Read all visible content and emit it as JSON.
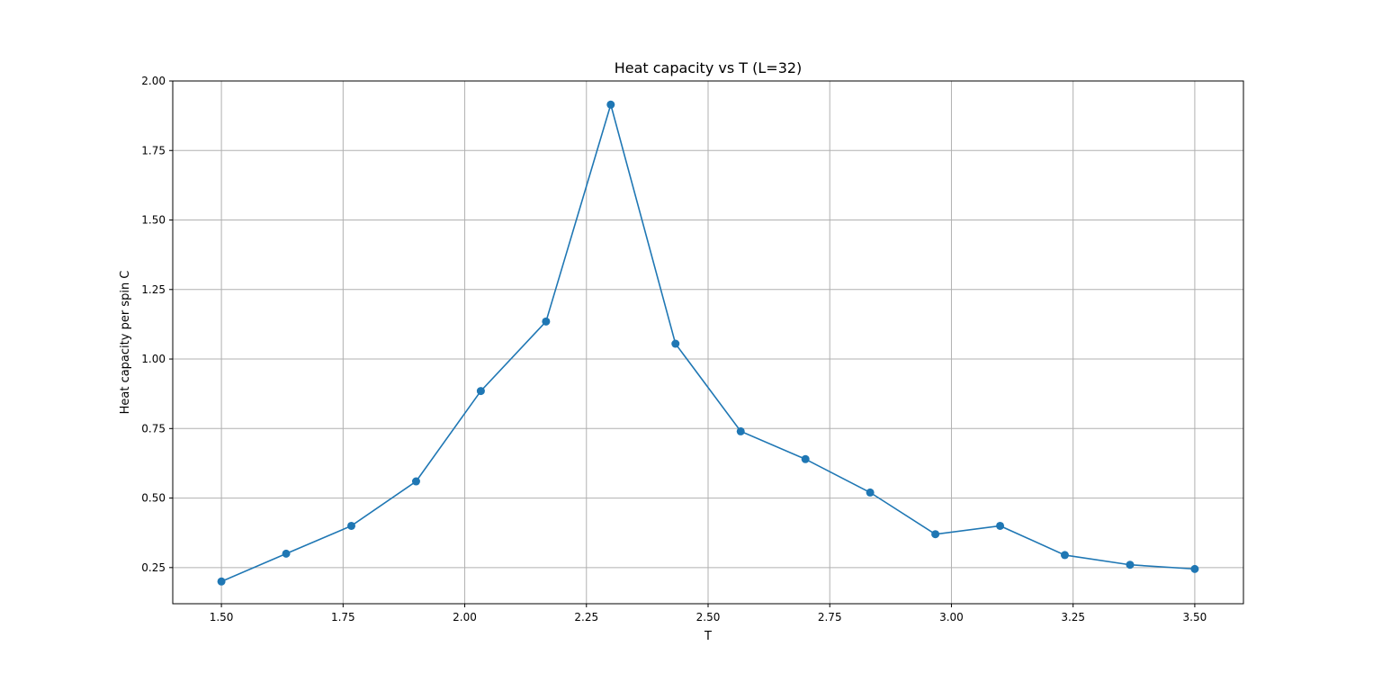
{
  "chart_data": {
    "type": "line",
    "title": "Heat capacity vs T (L=32)",
    "xlabel": "T",
    "ylabel": "Heat capacity per spin C",
    "xlim": [
      1.4,
      3.6
    ],
    "ylim": [
      0.12,
      2.0
    ],
    "xticks": [
      1.5,
      1.75,
      2.0,
      2.25,
      2.5,
      2.75,
      3.0,
      3.25,
      3.5
    ],
    "xtick_labels": [
      "1.50",
      "1.75",
      "2.00",
      "2.25",
      "2.50",
      "2.75",
      "3.00",
      "3.25",
      "3.50"
    ],
    "yticks": [
      0.25,
      0.5,
      0.75,
      1.0,
      1.25,
      1.5,
      1.75,
      2.0
    ],
    "ytick_labels": [
      "0.25",
      "0.50",
      "0.75",
      "1.00",
      "1.25",
      "1.50",
      "1.75",
      "2.00"
    ],
    "grid": true,
    "series": [
      {
        "color": "#1f77b4",
        "marker": "circle",
        "x": [
          1.5,
          1.633,
          1.767,
          1.9,
          2.033,
          2.167,
          2.3,
          2.433,
          2.567,
          2.7,
          2.833,
          2.967,
          3.1,
          3.233,
          3.367,
          3.5
        ],
        "y": [
          0.2,
          0.3,
          0.4,
          0.56,
          0.885,
          1.135,
          1.915,
          1.055,
          0.74,
          0.64,
          0.52,
          0.37,
          0.4,
          0.295,
          0.26,
          0.245
        ]
      }
    ]
  }
}
